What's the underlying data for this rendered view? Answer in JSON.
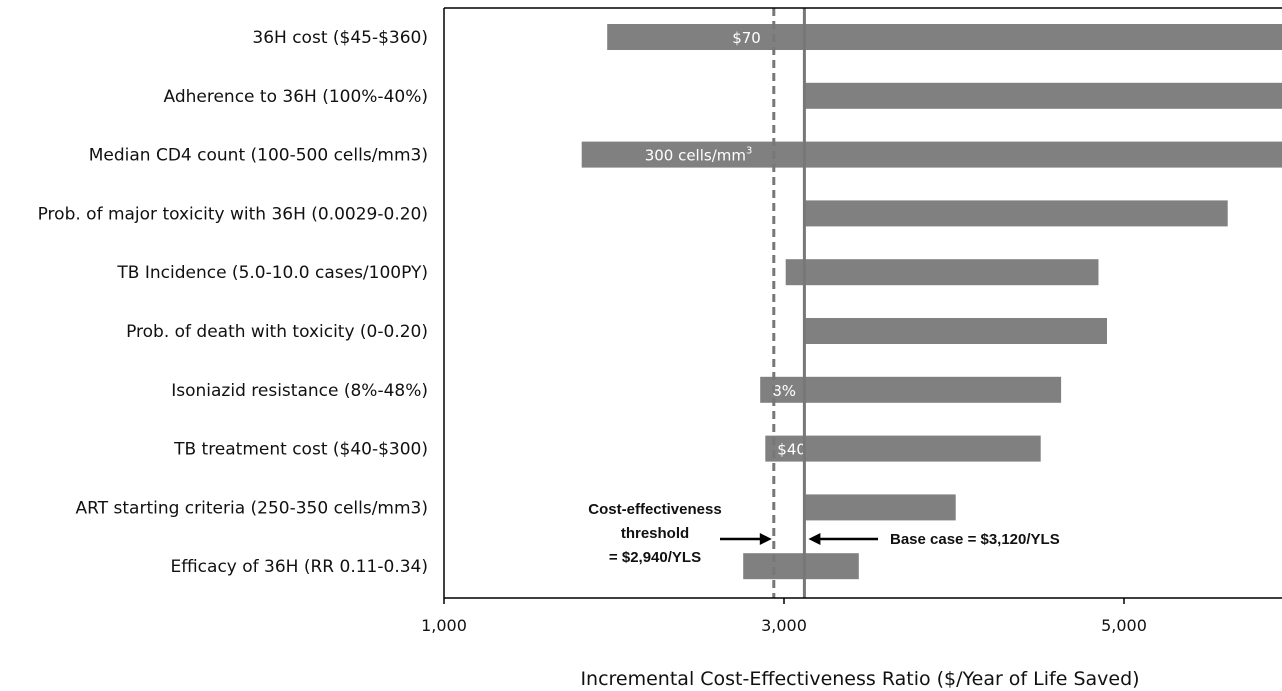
{
  "chart_data": {
    "type": "bar",
    "orientation": "horizontal",
    "chart_subtype": "tornado",
    "title": "",
    "xlabel": "Incremental Cost-Effectiveness Ratio ($/Year of Life Saved)",
    "ylabel": "",
    "xlim": [
      1000,
      6000
    ],
    "xticks": [
      1000,
      3000,
      5000
    ],
    "xtick_labels": [
      "1,000",
      "3,000",
      "5,000"
    ],
    "grid": false,
    "bar_color": "#808080",
    "reference_color": "#777777",
    "categories": [
      "36H cost ($45-$360)",
      "Adherence to 36H (100%-40%)",
      "Median CD4 count (100-500 cells/mm3)",
      "Prob. of major toxicity with 36H (0.0029-0.20)",
      "TB Incidence (5.0-10.0 cases/100PY)",
      "Prob. of death with toxicity (0-0.20)",
      "Isoniazid resistance (8%-48%)",
      "TB treatment cost ($40-$300)",
      "ART starting criteria (250-350 cells/mm3)",
      "Efficacy of 36H (RR 0.11-0.34)"
    ],
    "ranges": [
      [
        1960,
        6000
      ],
      [
        3120,
        6000
      ],
      [
        1810,
        6000
      ],
      [
        3120,
        5610
      ],
      [
        3010,
        4850
      ],
      [
        3120,
        4900
      ],
      [
        2860,
        4630
      ],
      [
        2890,
        4510
      ],
      [
        3120,
        4010
      ],
      [
        2760,
        3440
      ]
    ],
    "bar_labels": [
      "$70",
      "",
      "300 cells/mm",
      "",
      "",
      "",
      "8%",
      "$40",
      "",
      ""
    ],
    "bar_label_superscripts": [
      "",
      "",
      "3",
      "",
      "",
      "",
      "",
      "",
      "",
      ""
    ],
    "reference_lines": [
      {
        "value": 3120,
        "style": "solid",
        "annotation": "Base case = $3,120/YLS"
      },
      {
        "value": 2940,
        "style": "dashed",
        "annotation": [
          "Cost-effectiveness",
          "threshold",
          "= $2,940/YLS"
        ]
      }
    ]
  }
}
